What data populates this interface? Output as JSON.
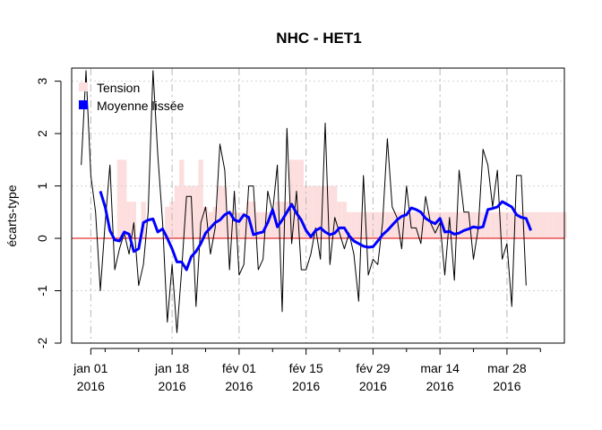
{
  "chart_data": {
    "type": "line",
    "title": "NHC - HET1",
    "xlabel": "",
    "ylabel": "écarts-type",
    "ylim": [
      -2,
      3.25
    ],
    "yticks": [
      -2,
      -1,
      0,
      1,
      2,
      3
    ],
    "x_start": "2015-12-28",
    "x_end": "2016-04-09",
    "x_unit": "days",
    "xticks": [
      {
        "date": "2016-01-01",
        "line1": "jan 01",
        "line2": "2016"
      },
      {
        "date": "2016-01-18",
        "line1": "jan 18",
        "line2": "2016"
      },
      {
        "date": "2016-02-01",
        "line1": "fév 01",
        "line2": "2016"
      },
      {
        "date": "2016-02-15",
        "line1": "fév 15",
        "line2": "2016"
      },
      {
        "date": "2016-02-29",
        "line1": "fév 29",
        "line2": "2016"
      },
      {
        "date": "2016-03-14",
        "line1": "mar 14",
        "line2": "2016"
      },
      {
        "date": "2016-03-28",
        "line1": "mar 28",
        "line2": "2016"
      }
    ],
    "minor_tick_dates": [
      "2016-01-04",
      "2016-01-11",
      "2016-01-25",
      "2016-02-08",
      "2016-02-22",
      "2016-03-07",
      "2016-03-21",
      "2016-04-04"
    ],
    "grid": true,
    "legend_position": "top-left",
    "legend": [
      {
        "label": "Tension",
        "color": "#fddede"
      },
      {
        "label": "Moyenne lissée",
        "color": "#0000ff"
      }
    ],
    "reference_line": {
      "y": 0,
      "color": "#dd0000"
    },
    "series": [
      {
        "name": "Tension",
        "kind": "bars",
        "color": "#fddede",
        "start": "2015-12-30",
        "step_days": 1,
        "values": [
          0,
          0,
          0,
          0,
          0,
          0,
          0,
          0,
          1.5,
          1.5,
          0.7,
          0.7,
          0,
          0.7,
          0,
          0,
          0,
          0,
          0.6,
          0.7,
          1.0,
          1.5,
          1.0,
          1.0,
          1.0,
          1.5,
          0.6,
          0.5,
          0.6,
          1.0,
          1.0,
          0.5,
          0.5,
          0.5,
          0.5,
          0.7,
          0.7,
          0.5,
          0.5,
          0.5,
          0.5,
          0.7,
          0.7,
          0.7,
          1.5,
          1.5,
          1.5,
          1.0,
          1.0,
          1.0,
          1.0,
          1.0,
          1.0,
          1.0,
          0.7,
          0.7,
          0.5,
          0.5,
          0.5,
          0.5,
          0.5,
          0.5,
          0.5,
          0.5,
          0.5,
          0.5,
          0.5,
          0.5,
          0.5,
          0.5,
          0.5,
          0.5,
          0.5,
          0.5,
          0.5,
          0.5,
          0.5,
          0.5,
          0.5,
          0.5,
          0.5,
          0.5,
          0.5,
          0.5,
          0.5,
          0.5,
          0.5,
          0.5,
          0.5,
          0.5,
          0.5,
          0.5,
          0.5,
          0.5,
          0.5,
          0.5,
          0.5,
          0.5,
          0.5,
          0.5,
          0.5,
          0.5
        ]
      },
      {
        "name": "",
        "kind": "line",
        "color": "#000000",
        "start": "2015-12-30",
        "step_days": 1,
        "values": [
          1.4,
          3.2,
          1.2,
          0.5,
          -1.0,
          0.3,
          1.4,
          -0.6,
          -0.2,
          0.1,
          -0.3,
          0.3,
          -0.9,
          -0.5,
          0.5,
          3.2,
          1.6,
          0.3,
          -1.6,
          -0.5,
          -1.8,
          -0.6,
          0.8,
          0.8,
          -1.3,
          0.3,
          0.6,
          -0.3,
          0.2,
          1.8,
          1.3,
          -0.6,
          0.9,
          -0.7,
          -0.5,
          1.0,
          1.0,
          -0.6,
          -0.4,
          0.9,
          0.5,
          1.4,
          -1.4,
          2.1,
          -0.1,
          0.9,
          -0.6,
          -0.6,
          -0.3,
          0.2,
          -0.4,
          2.2,
          -0.5,
          0.4,
          0.1,
          -0.2,
          0.1,
          -0.3,
          -1.2,
          1.2,
          -0.7,
          -0.4,
          -0.5,
          0.3,
          1.9,
          0.6,
          0.4,
          -0.2,
          1.0,
          0.2,
          0.2,
          -0.1,
          0.8,
          0.3,
          0.1,
          0.3,
          -0.7,
          0.4,
          -0.8,
          1.3,
          0.5,
          0.5,
          -0.4,
          0.2,
          1.7,
          1.4,
          0.6,
          1.3,
          -0.4,
          -0.1,
          -1.3,
          1.2,
          1.2,
          -0.9
        ]
      },
      {
        "name": "Moyenne lissée",
        "kind": "line",
        "color": "#0000ff",
        "start": "2016-01-03",
        "step_days": 1,
        "values": [
          0.9,
          0.6,
          0.15,
          -0.03,
          -0.05,
          0.12,
          0.08,
          -0.25,
          -0.2,
          0.3,
          0.35,
          0.37,
          0.12,
          0.18,
          0.0,
          -0.2,
          -0.45,
          -0.45,
          -0.6,
          -0.35,
          -0.25,
          -0.1,
          0.1,
          0.2,
          0.3,
          0.35,
          0.45,
          0.5,
          0.35,
          0.32,
          0.45,
          0.4,
          0.07,
          0.1,
          0.12,
          0.3,
          0.55,
          0.22,
          0.35,
          0.5,
          0.65,
          0.48,
          0.35,
          0.15,
          0.03,
          0.15,
          0.2,
          0.12,
          0.07,
          0.1,
          0.2,
          0.2,
          0.05,
          -0.05,
          -0.1,
          -0.15,
          -0.17,
          -0.16,
          -0.05,
          0.07,
          0.15,
          0.25,
          0.35,
          0.42,
          0.45,
          0.58,
          0.55,
          0.5,
          0.38,
          0.32,
          0.28,
          0.38,
          0.12,
          0.13,
          0.08,
          0.1,
          0.15,
          0.18,
          0.22,
          0.2,
          0.22,
          0.55,
          0.57,
          0.6,
          0.7,
          0.65,
          0.6,
          0.45,
          0.4,
          0.38,
          0.15
        ]
      }
    ]
  }
}
